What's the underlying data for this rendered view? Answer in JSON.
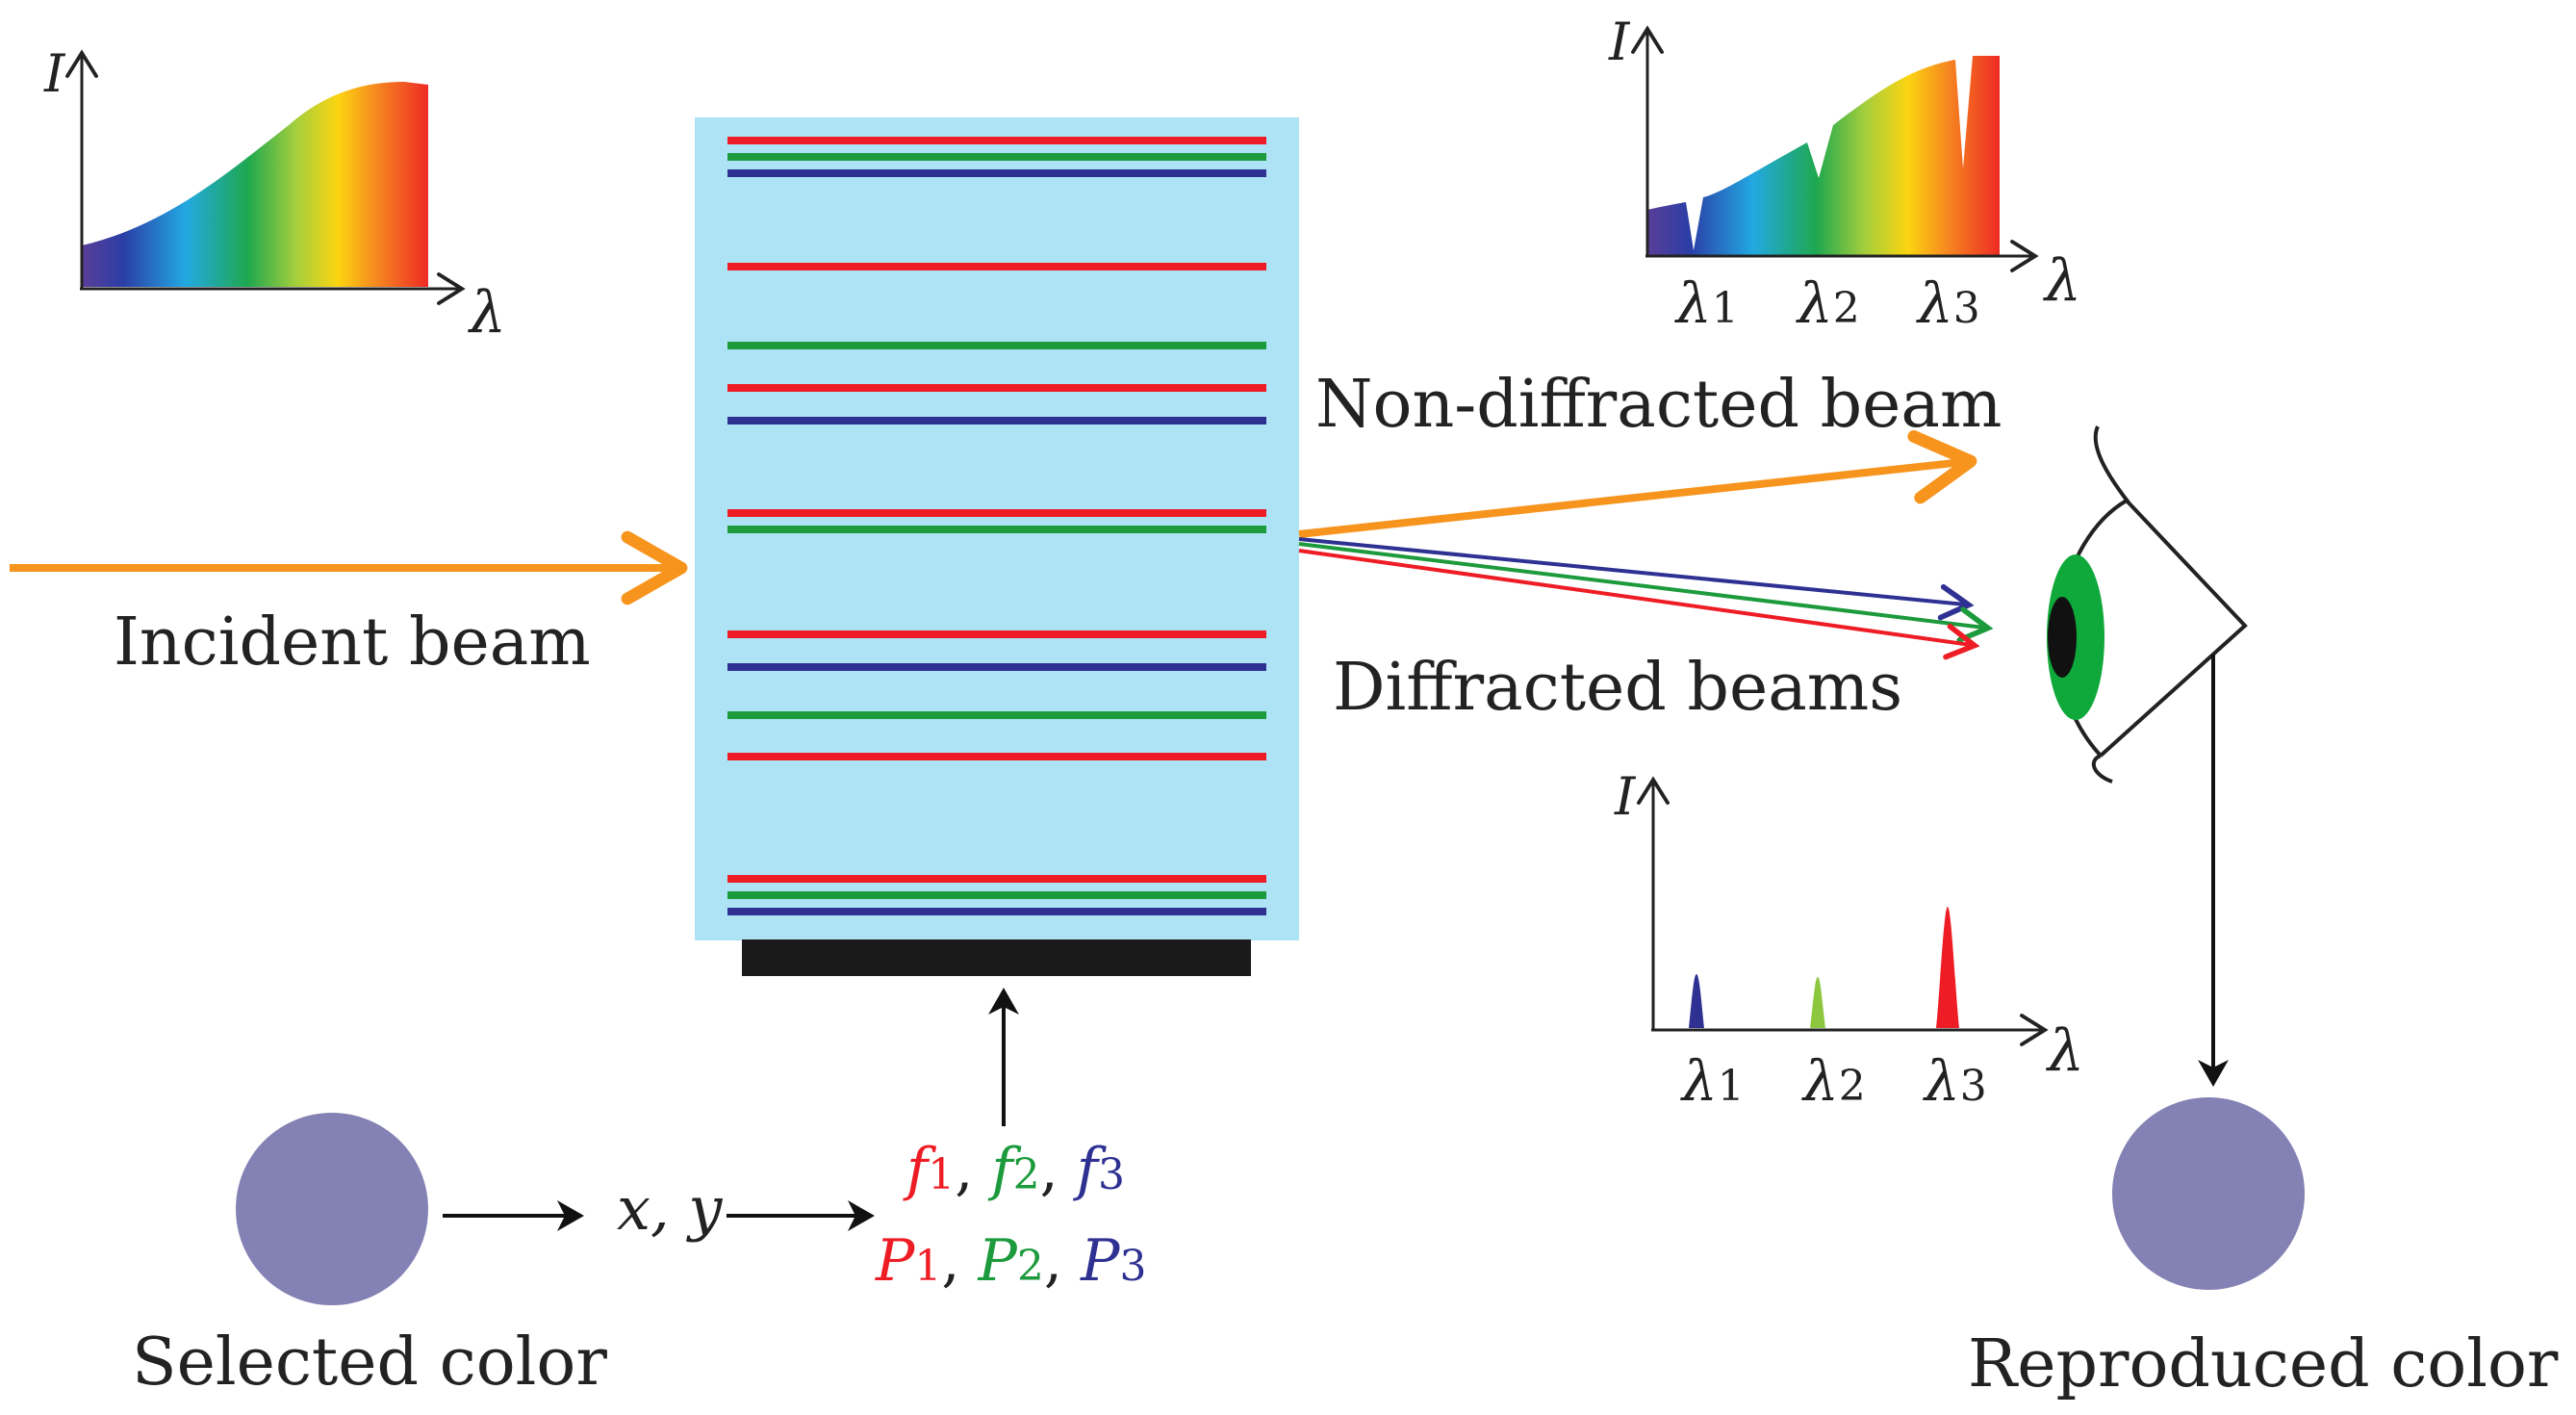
{
  "labels": {
    "incident_beam": "Incident beam",
    "non_diffracted_beam": "Non-diffracted beam",
    "diffracted_beams": "Diffracted beams",
    "selected_color": "Selected color",
    "reproduced_color": "Reproduced color",
    "coords": "x, y"
  },
  "axes": {
    "intensity": "I",
    "wavelength": "λ",
    "lambda_sub": [
      "1",
      "2",
      "3"
    ]
  },
  "params": {
    "f_symbol": "f",
    "P_symbol": "P",
    "subscripts": [
      "1",
      "2",
      "3"
    ],
    "separator": ", "
  },
  "colors": {
    "red": "#ee1c24",
    "green": "#1c9a3c",
    "blue": "#2e3192",
    "light_green": "#8dc63f",
    "incident_orange": "#f7941d",
    "hologram_bg": "#aee3f6",
    "plate": "#1a1a1a",
    "swatch": "#8481b4",
    "eye_iris": "#0fa83a"
  },
  "icons": {
    "eye": "eye-icon",
    "swatch": "color-swatch"
  }
}
